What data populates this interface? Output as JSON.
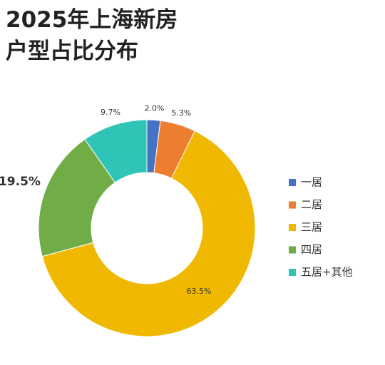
{
  "chart_data": {
    "type": "donut",
    "title": "2025年上海新房户型占比分布",
    "categories": [
      "一居",
      "二居",
      "三居",
      "四居",
      "五居+其他"
    ],
    "values": [
      2.0,
      5.3,
      63.5,
      19.5,
      9.7
    ],
    "value_labels": [
      "2.0%",
      "5.3%",
      "63.5%",
      "19.5%",
      "9.7%"
    ],
    "colors": [
      "#4472c4",
      "#ed7d31",
      "#f0b800",
      "#70ad47",
      "#2ec4b6"
    ],
    "legend": "right"
  }
}
